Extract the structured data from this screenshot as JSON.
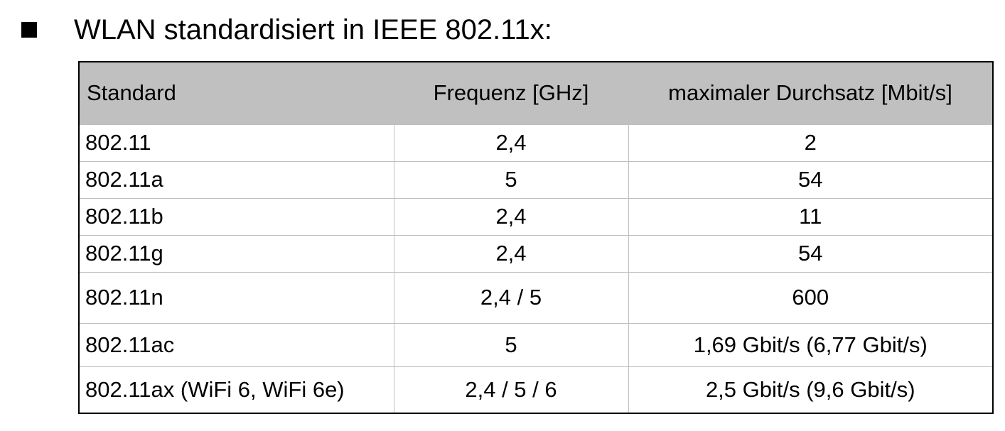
{
  "heading": {
    "bullet_icon": "black-square",
    "text": "WLAN standardisiert in IEEE 802.11x:"
  },
  "table": {
    "headers": {
      "standard": "Standard",
      "frequency": "Frequenz [GHz]",
      "throughput": "maximaler Durchsatz [Mbit/s]"
    },
    "header_background": "#c0c0c0",
    "rows": [
      {
        "standard": "802.11",
        "frequency": "2,4",
        "throughput": "2"
      },
      {
        "standard": "802.11a",
        "frequency": "5",
        "throughput": "54"
      },
      {
        "standard": "802.11b",
        "frequency": "2,4",
        "throughput": "11"
      },
      {
        "standard": "802.11g",
        "frequency": "2,4",
        "throughput": "54"
      },
      {
        "standard": "802.11n",
        "frequency": "2,4 / 5",
        "throughput": "600"
      },
      {
        "standard": "802.11ac",
        "frequency": "5",
        "throughput": "1,69 Gbit/s (6,77 Gbit/s)"
      },
      {
        "standard": "802.11ax (WiFi 6, WiFi 6e)",
        "frequency": "2,4 / 5 / 6",
        "throughput": "2,5 Gbit/s (9,6 Gbit/s)"
      }
    ]
  }
}
